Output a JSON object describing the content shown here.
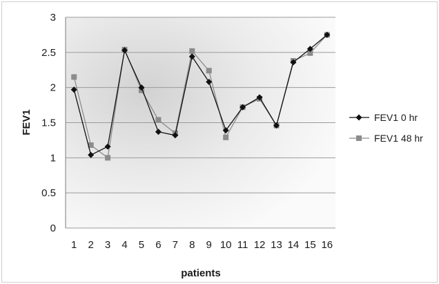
{
  "chart_data": {
    "type": "line",
    "title": "",
    "xlabel": "patients",
    "ylabel": "FEV1",
    "x": [
      "1",
      "2",
      "3",
      "4",
      "5",
      "6",
      "7",
      "8",
      "9",
      "10",
      "11",
      "12",
      "13",
      "14",
      "15",
      "16"
    ],
    "yticks": [
      "0",
      "0.5",
      "1",
      "1.5",
      "2",
      "2.5",
      "3"
    ],
    "ylim": [
      0,
      3
    ],
    "grid": true,
    "legend_position": "right",
    "series": [
      {
        "name": "FEV1 0 hr",
        "marker": "diamond",
        "color": "#111111",
        "values": [
          1.97,
          1.04,
          1.16,
          2.53,
          2.0,
          1.37,
          1.32,
          2.44,
          2.08,
          1.39,
          1.72,
          1.86,
          1.46,
          2.36,
          2.55,
          2.75
        ]
      },
      {
        "name": "FEV1 48 hr",
        "marker": "square",
        "color": "#8c8c8c",
        "values": [
          2.15,
          1.18,
          1.0,
          2.54,
          1.96,
          1.54,
          1.35,
          2.52,
          2.24,
          1.29,
          1.72,
          1.84,
          1.46,
          2.38,
          2.49,
          2.75
        ]
      }
    ]
  }
}
